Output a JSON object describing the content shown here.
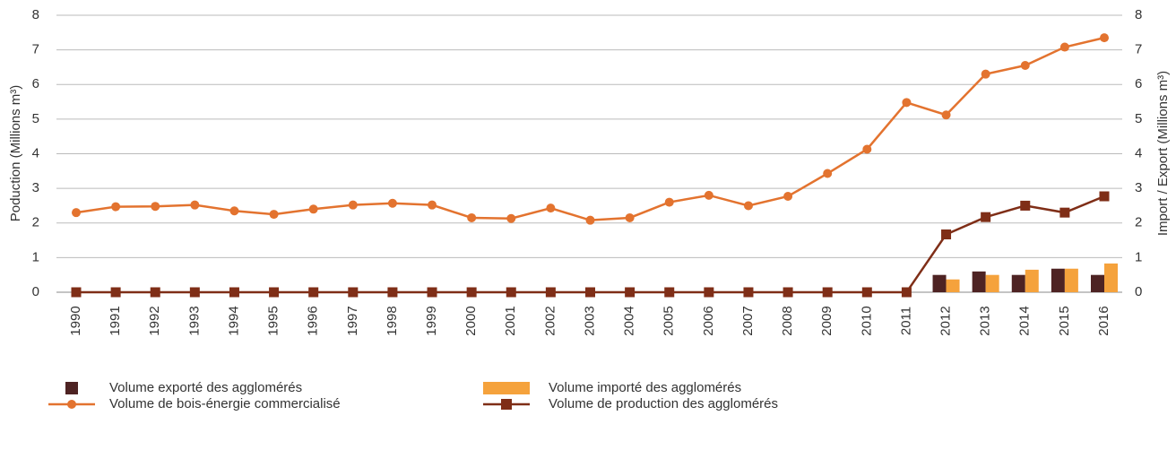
{
  "chart_data": {
    "type": "bar_line",
    "ylabel": "Poduction (Millions m³)",
    "y2label": "Import / Export (Millions m³)",
    "categories": [
      "1990",
      "1991",
      "1992",
      "1993",
      "1994",
      "1995",
      "1996",
      "1997",
      "1998",
      "1999",
      "2000",
      "2001",
      "2002",
      "2003",
      "2004",
      "2005",
      "2006",
      "2007",
      "2008",
      "2009",
      "2010",
      "2011",
      "2012",
      "2013",
      "2014",
      "2015",
      "2016"
    ],
    "ylim": [
      0,
      8
    ],
    "yticks": [
      0,
      1,
      2,
      3,
      4,
      5,
      6,
      7,
      8
    ],
    "y2lim": [
      0,
      8
    ],
    "y2ticks": [
      0,
      1,
      2,
      3,
      4,
      5,
      6,
      7,
      8
    ],
    "grid": true,
    "series": [
      {
        "name": "Volume exporté des agglomérés",
        "type": "bar",
        "axis": "y2",
        "color": "#4e2323",
        "values": [
          null,
          null,
          null,
          null,
          null,
          null,
          null,
          null,
          null,
          null,
          null,
          null,
          null,
          null,
          null,
          null,
          null,
          null,
          null,
          null,
          null,
          null,
          0.5,
          0.6,
          0.5,
          0.68,
          0.5
        ]
      },
      {
        "name": "Volume importé des agglomérés",
        "type": "bar",
        "axis": "y2",
        "color": "#f5a23c",
        "values": [
          null,
          null,
          null,
          null,
          null,
          null,
          null,
          null,
          null,
          null,
          null,
          null,
          null,
          null,
          null,
          null,
          null,
          null,
          null,
          null,
          null,
          null,
          0.37,
          0.5,
          0.65,
          0.68,
          0.83
        ]
      },
      {
        "name": "Volume de bois-énergie commercialisé",
        "type": "line",
        "marker": "circle",
        "color": "#e3732f",
        "values": [
          2.3,
          2.47,
          2.48,
          2.52,
          2.35,
          2.25,
          2.4,
          2.52,
          2.57,
          2.52,
          2.15,
          2.13,
          2.43,
          2.08,
          2.15,
          2.6,
          2.8,
          2.5,
          2.77,
          3.43,
          4.13,
          5.48,
          5.12,
          6.3,
          6.55,
          7.08,
          7.35
        ]
      },
      {
        "name": "Volume de production des agglomérés",
        "type": "line",
        "marker": "square",
        "color": "#7f2e17",
        "values": [
          0,
          0,
          0,
          0,
          0,
          0,
          0,
          0,
          0,
          0,
          0,
          0,
          0,
          0,
          0,
          0,
          0,
          0,
          0,
          0,
          0,
          0,
          1.67,
          2.17,
          2.5,
          2.3,
          2.77
        ]
      }
    ]
  }
}
